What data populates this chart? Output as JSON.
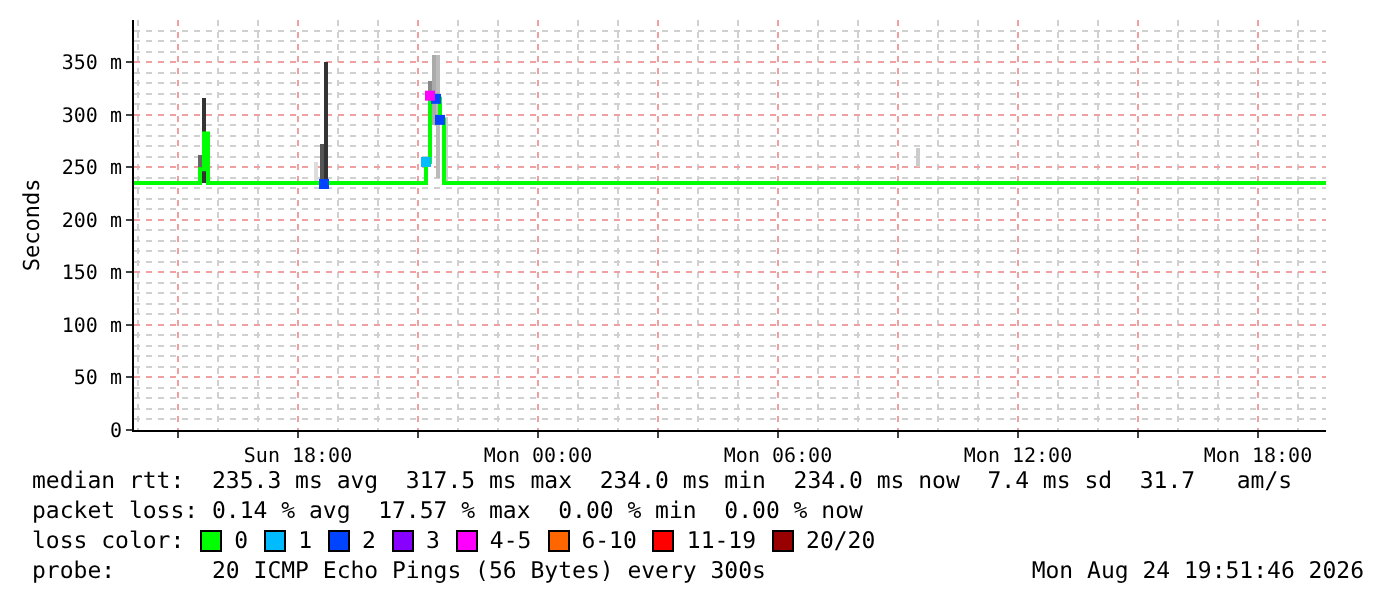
{
  "chart_data": {
    "type": "step",
    "ylabel": "Seconds",
    "xlim": [
      "2026-08-23T13:54",
      "2026-08-24T19:42"
    ],
    "xticks": [
      {
        "value": "2026-08-23T15:00",
        "label": null
      },
      {
        "value": "2026-08-23T18:00",
        "label": "Sun 18:00"
      },
      {
        "value": "2026-08-23T21:00",
        "label": null
      },
      {
        "value": "2026-08-24T00:00",
        "label": "Mon 00:00"
      },
      {
        "value": "2026-08-24T03:00",
        "label": null
      },
      {
        "value": "2026-08-24T06:00",
        "label": "Mon 06:00"
      },
      {
        "value": "2026-08-24T09:00",
        "label": null
      },
      {
        "value": "2026-08-24T12:00",
        "label": "Mon 12:00"
      },
      {
        "value": "2026-08-24T15:00",
        "label": null
      },
      {
        "value": "2026-08-24T18:00",
        "label": "Mon 18:00"
      }
    ],
    "ylim": [
      0,
      390
    ],
    "yticks": [
      0,
      {
        "value": 50,
        "label": "50 m"
      },
      {
        "value": 100,
        "label": "100 m"
      },
      {
        "value": 150,
        "label": "150 m"
      },
      {
        "value": 200,
        "label": "200 m"
      },
      {
        "value": 250,
        "label": "250 m"
      },
      {
        "value": 300,
        "label": "300 m"
      },
      {
        "value": 350,
        "label": "350 m"
      }
    ],
    "grid": true,
    "legend": "bottom",
    "legend_title": "loss color:",
    "series": [
      {
        "type": "bar",
        "x": [
          "2026-08-23T15:33",
          "2026-08-23T15:39",
          "2026-08-23T18:27",
          "2026-08-23T18:36",
          "2026-08-23T18:42",
          "2026-08-23T21:18",
          "2026-08-23T21:24",
          "2026-08-23T21:30",
          "2026-08-23T21:42",
          "2026-08-24T09:30"
        ],
        "base": [
          238,
          235,
          236,
          235,
          235,
          300,
          290,
          240,
          235,
          250
        ],
        "values": [
          24,
          81,
          19,
          37,
          115,
          32,
          67,
          117,
          63,
          18
        ],
        "colors": [
          "#666666",
          "#333333",
          "#dddddd",
          "#555555",
          "#333333",
          "#888888",
          "#aaaaaa",
          "#bbbbbb",
          "#cccccc",
          "#cccccc"
        ]
      },
      {
        "name": "0",
        "color": "#00ff00",
        "x": [
          "2026-08-23T13:54",
          "2026-08-23T15:33",
          "2026-08-23T15:39",
          "2026-08-23T15:45",
          "2026-08-23T21:12",
          "2026-08-23T21:18",
          "2026-08-23T21:27",
          "2026-08-23T21:33",
          "2026-08-23T21:39",
          "2026-08-24T19:42"
        ],
        "values": [
          235,
          248,
          282,
          235,
          255,
          318,
          315,
          295,
          235,
          235
        ]
      },
      {
        "name": "1",
        "type": "scatter",
        "marker": "square",
        "color": "#00bbff",
        "x": [
          "2026-08-23T21:12"
        ],
        "values": [
          255
        ]
      },
      {
        "name": "2",
        "type": "scatter",
        "marker": "square",
        "color": "#0044ff",
        "x": [
          "2026-08-23T18:39",
          "2026-08-23T21:27",
          "2026-08-23T21:33"
        ],
        "values": [
          234,
          315,
          295
        ]
      },
      {
        "name": "3",
        "type": "scatter",
        "marker": "square",
        "color": "#8800ff"
      },
      {
        "name": "4-5",
        "type": "scatter",
        "marker": "square",
        "color": "#ff00ff",
        "x": [
          "2026-08-23T21:18"
        ],
        "values": [
          318
        ]
      },
      {
        "name": "6-10",
        "type": "scatter",
        "marker": "square",
        "color": "#ff6600"
      },
      {
        "name": "11-19",
        "type": "scatter",
        "marker": "square",
        "color": "#ff0000"
      },
      {
        "name": "20/20",
        "type": "scatter",
        "marker": "square",
        "color": "#990000"
      }
    ],
    "annotations": [
      "median rtt:  235.3 ms avg  317.5 ms max  234.0 ms min  234.0 ms now  7.4 ms sd  31.7   am/s",
      "packet loss: 0.14 % avg  17.57 % max  0.00 % min  0.00 % now",
      "probe:       20 ICMP Echo Pings (56 Bytes) every 300s",
      "Mon Aug 24 19:51:46 2026"
    ]
  }
}
